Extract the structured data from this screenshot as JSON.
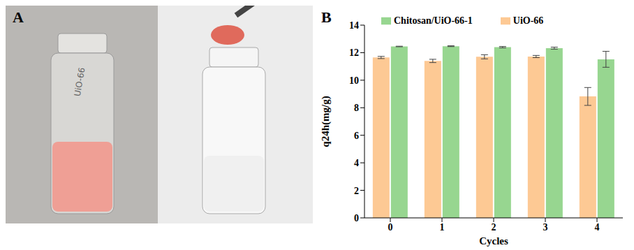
{
  "panel_a": {
    "label": "A",
    "vial_label": "UiO-66"
  },
  "chart_data": {
    "type": "bar",
    "panel_label": "B",
    "x_label": "Cycles",
    "y_label": "q24h(mg/g)",
    "categories": [
      "0",
      "1",
      "2",
      "3",
      "4"
    ],
    "series": [
      {
        "name": "UiO-66",
        "color": "#fdc994",
        "values": [
          11.65,
          11.4,
          11.7,
          11.72,
          8.82
        ],
        "errors": [
          0.08,
          0.12,
          0.15,
          0.08,
          0.65
        ]
      },
      {
        "name": "Chitosan/UiO-66-1",
        "color": "#97d690",
        "values": [
          12.45,
          12.47,
          12.4,
          12.33,
          11.52
        ],
        "errors": [
          0.02,
          0.03,
          0.05,
          0.07,
          0.58
        ]
      }
    ],
    "ylim": [
      0,
      14
    ],
    "yticks": [
      0,
      2,
      4,
      6,
      8,
      10,
      12,
      14
    ],
    "legend": "upper left",
    "grid": false
  }
}
